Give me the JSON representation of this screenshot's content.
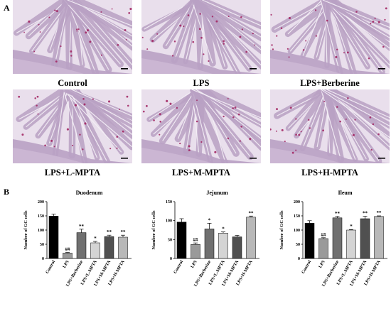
{
  "panel_a": {
    "label": "A",
    "images": [
      {
        "caption": "Control"
      },
      {
        "caption": "LPS"
      },
      {
        "caption": "LPS+Berberine"
      },
      {
        "caption": "LPS+L-MPTA"
      },
      {
        "caption": "LPS+M-MPTA"
      },
      {
        "caption": "LPS+H-MPTA"
      }
    ]
  },
  "panel_b": {
    "label": "B"
  },
  "colors": {
    "tissue": "#d9c8de",
    "tissue_dark": "#b9a1c4",
    "stain": "#a0205e",
    "bar_control": "#000000",
    "bar_lps": "#9a9a9a",
    "bar_berberine": "#707070",
    "bar_l": "#d4d4d4",
    "bar_m": "#505050",
    "bar_h": "#b8b8b8"
  },
  "chart_data": [
    {
      "type": "bar",
      "title": "Duodenum",
      "ylabel": "Number of GC cells",
      "categories": [
        "Control",
        "LPS",
        "LPS+Berberine",
        "LPS+L-MPTA",
        "LPS+M-MPTA",
        "LPS+H-MPTA"
      ],
      "values": [
        149,
        19,
        91,
        55,
        77,
        75
      ],
      "errors": [
        7,
        2,
        12,
        5,
        5,
        7
      ],
      "annotations": [
        "",
        "##",
        "**",
        "*",
        "**",
        "**"
      ],
      "ylim": [
        0,
        200
      ],
      "yticks": [
        0,
        50,
        100,
        150,
        200
      ]
    },
    {
      "type": "bar",
      "title": "Jejunum",
      "ylabel": "Number of GC cells",
      "categories": [
        "Control",
        "LPS",
        "LPS+Berberine",
        "LPS+L-MPTA",
        "LPS+M-MPTA",
        "LPS+H-MPTA"
      ],
      "values": [
        96,
        37,
        78,
        67,
        57,
        109
      ],
      "errors": [
        9,
        4,
        15,
        3,
        4,
        3
      ],
      "annotations": [
        "",
        "##",
        "*",
        "*",
        "",
        "**"
      ],
      "ylim": [
        0,
        150
      ],
      "yticks": [
        0,
        50,
        100,
        150
      ]
    },
    {
      "type": "bar",
      "title": "Ileum",
      "ylabel": "Number of GC cells",
      "categories": [
        "Control",
        "LPS",
        "LPS+Berberine",
        "LPS+L-MPTA",
        "LPS+M-MPTA",
        "LPS+H-MPTA"
      ],
      "values": [
        124,
        70,
        143,
        100,
        140,
        148
      ],
      "errors": [
        9,
        3,
        5,
        2,
        9,
        2
      ],
      "annotations": [
        "",
        "##",
        "**",
        "*",
        "**",
        "**"
      ],
      "ylim": [
        0,
        200
      ],
      "yticks": [
        0,
        50,
        100,
        150,
        200
      ]
    }
  ]
}
